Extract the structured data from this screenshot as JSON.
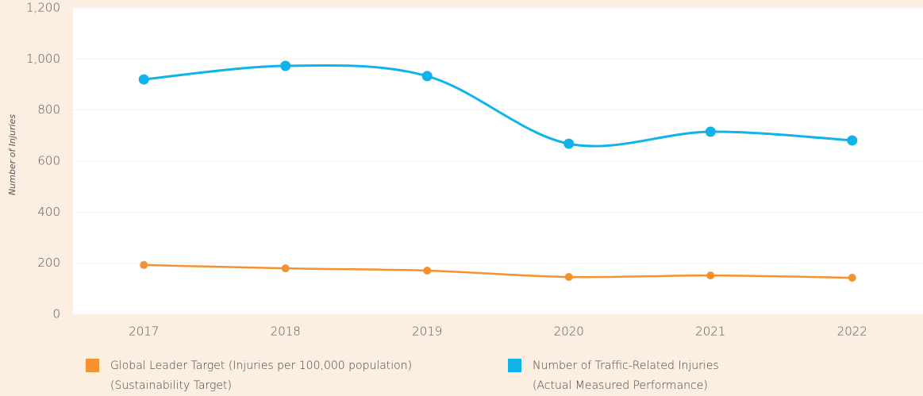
{
  "chart_data": {
    "type": "line",
    "y_label": "Number of Injuries",
    "categories": [
      "2017",
      "2018",
      "2019",
      "2020",
      "2021",
      "2022"
    ],
    "series": [
      {
        "name": "Global Leader Target (Injuries per 100,000 population)",
        "subtitle": "(Sustainability Target)",
        "color": "#f5922f",
        "values": [
          193,
          180,
          171,
          146,
          152,
          143
        ]
      },
      {
        "name": "Number of Traffic-Related Injuries",
        "subtitle": "(Actual Measured Performance)",
        "color": "#0fb3ea",
        "values": [
          920,
          973,
          933,
          668,
          715,
          681
        ]
      }
    ],
    "ylim": [
      0,
      1200
    ],
    "yticks": [
      0,
      200,
      400,
      600,
      800,
      {
        "value": 1000,
        "label": "1,000"
      },
      {
        "value": 1200,
        "label": "1,200"
      }
    ],
    "grid": true
  }
}
